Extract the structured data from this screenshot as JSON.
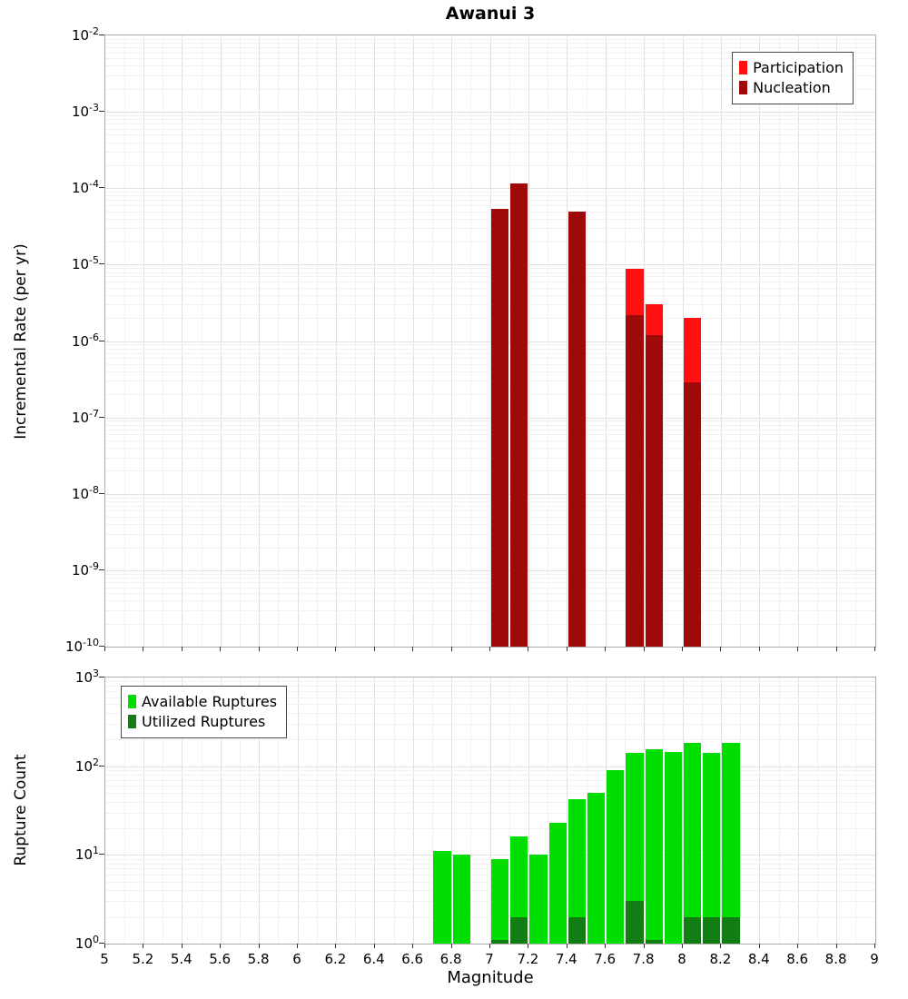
{
  "title": "Awanui 3",
  "x_axis": {
    "label": "Magnitude",
    "min": 5,
    "max": 9,
    "tick_step": 0.2,
    "ticks": [
      "5",
      "5.2",
      "5.4",
      "5.6",
      "5.8",
      "6",
      "6.2",
      "6.4",
      "6.6",
      "6.8",
      "7",
      "7.2",
      "7.4",
      "7.6",
      "7.8",
      "8",
      "8.2",
      "8.4",
      "8.6",
      "8.8",
      "9"
    ]
  },
  "chart_data": [
    {
      "type": "bar",
      "id": "rate",
      "title": "Awanui 3",
      "ylabel": "Incremental Rate (per yr)",
      "yscale": "log",
      "ylim": [
        1e-10,
        0.01
      ],
      "y_tick_exponents": [
        -2,
        -3,
        -4,
        -5,
        -6,
        -7,
        -8,
        -9,
        -10
      ],
      "xlim": [
        5,
        9
      ],
      "bin_width": 0.1,
      "grid": true,
      "legend_position": "top-right",
      "series": [
        {
          "name": "Participation",
          "color": "#ff1111",
          "bars": [
            [
              7.05,
              5.3e-05
            ],
            [
              7.15,
              0.000115
            ],
            [
              7.45,
              5e-05
            ],
            [
              7.75,
              8.8e-06
            ],
            [
              7.85,
              3e-06
            ],
            [
              8.05,
              2e-06
            ]
          ]
        },
        {
          "name": "Nucleation",
          "color": "#a00909",
          "bars": [
            [
              7.05,
              5.3e-05
            ],
            [
              7.15,
              0.000115
            ],
            [
              7.45,
              5e-05
            ],
            [
              7.75,
              2.2e-06
            ],
            [
              7.85,
              1.2e-06
            ],
            [
              8.05,
              2.9e-07
            ]
          ]
        }
      ]
    },
    {
      "type": "bar",
      "id": "count",
      "ylabel": "Rupture Count",
      "xlabel": "Magnitude",
      "yscale": "log",
      "ylim": [
        1,
        1000
      ],
      "y_tick_exponents": [
        3,
        2,
        1,
        0
      ],
      "xlim": [
        5,
        9
      ],
      "bin_width": 0.1,
      "grid": true,
      "legend_position": "top-left",
      "series": [
        {
          "name": "Available Ruptures",
          "color": "#00dd00",
          "bars": [
            [
              6.75,
              11
            ],
            [
              6.85,
              10
            ],
            [
              7.05,
              9
            ],
            [
              7.15,
              16
            ],
            [
              7.25,
              10
            ],
            [
              7.35,
              23
            ],
            [
              7.45,
              42
            ],
            [
              7.55,
              50
            ],
            [
              7.65,
              90
            ],
            [
              7.75,
              140
            ],
            [
              7.85,
              155
            ],
            [
              7.95,
              145
            ],
            [
              8.05,
              185
            ],
            [
              8.15,
              140
            ],
            [
              8.25,
              185
            ]
          ]
        },
        {
          "name": "Utilized Ruptures",
          "color": "#127d12",
          "bars": [
            [
              7.05,
              1
            ],
            [
              7.15,
              2
            ],
            [
              7.45,
              2
            ],
            [
              7.75,
              3
            ],
            [
              7.85,
              1
            ],
            [
              8.05,
              2
            ],
            [
              8.15,
              2
            ],
            [
              8.25,
              2
            ]
          ]
        }
      ]
    }
  ]
}
